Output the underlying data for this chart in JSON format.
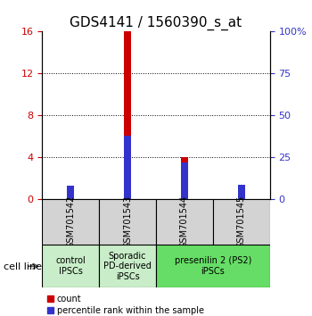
{
  "title": "GDS4141 / 1560390_s_at",
  "samples": [
    "GSM701542",
    "GSM701543",
    "GSM701544",
    "GSM701545"
  ],
  "count_values": [
    1.0,
    16.0,
    4.0,
    1.3
  ],
  "percentile_values_pct": [
    8.0,
    38.0,
    22.0,
    8.5
  ],
  "left_ylim": [
    0,
    16
  ],
  "left_yticks": [
    0,
    4,
    8,
    12,
    16
  ],
  "right_ytick_labels": [
    "0",
    "25",
    "50",
    "75",
    "100%"
  ],
  "bar_width": 0.12,
  "count_color": "#cc0000",
  "percentile_color": "#3333cc",
  "group_info": [
    {
      "span": [
        0,
        1
      ],
      "label": "control\nIPSCs",
      "color": "#c8edc8"
    },
    {
      "span": [
        1,
        2
      ],
      "label": "Sporadic\nPD-derived\niPSCs",
      "color": "#c8edc8"
    },
    {
      "span": [
        2,
        4
      ],
      "label": "presenilin 2 (PS2)\niPSCs",
      "color": "#66dd66"
    }
  ],
  "cell_line_label": "cell line",
  "legend_count": "count",
  "legend_percentile": "percentile rank within the sample",
  "tick_color_left": "#cc0000",
  "tick_color_right": "#3333cc",
  "title_fontsize": 11,
  "axis_fontsize": 8,
  "sample_fontsize": 7,
  "group_fontsize": 7
}
